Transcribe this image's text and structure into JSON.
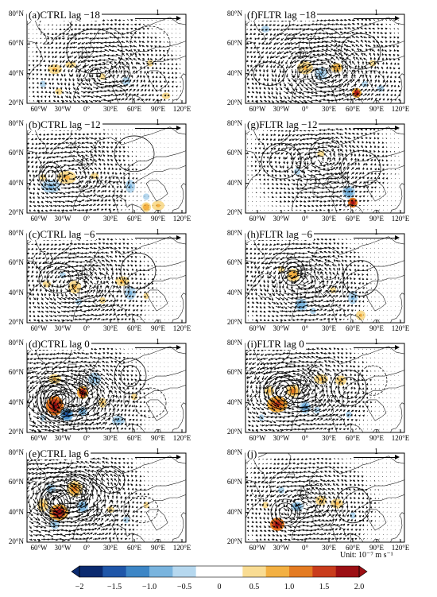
{
  "panels": [
    {
      "id": "a",
      "title": "(a)CTRL lag −18"
    },
    {
      "id": "b",
      "title": "(b)CTRL lag −12"
    },
    {
      "id": "c",
      "title": "(c)CTRL lag −6"
    },
    {
      "id": "d",
      "title": "(d)CTRL lag 0"
    },
    {
      "id": "e",
      "title": "(e)CTRL lag 6"
    },
    {
      "id": "f",
      "title": "(f)FLTR lag −18"
    },
    {
      "id": "g",
      "title": "(g)FLTR lag −12"
    },
    {
      "id": "h",
      "title": "(h)FLTR lag −6"
    },
    {
      "id": "i",
      "title": "(i)FLTR lag 0"
    },
    {
      "id": "j",
      "title": "(j)"
    }
  ],
  "reference_vector_label": "1",
  "unit_label": "Unit: 10⁻⁷ m s⁻¹",
  "chart_data": {
    "type": "heatmap",
    "description_of_panels": "10 map panels with shaded field, contours and vectors over North Atlantic/Eurasia",
    "lat_ticks": [
      "20°N",
      "40°N",
      "60°N",
      "80°N"
    ],
    "lon_ticks": [
      "60°W",
      "30°W",
      "0°",
      "30°E",
      "60°E",
      "90°E",
      "120°E"
    ],
    "lat_range": [
      20,
      80
    ],
    "lon_range": [
      -75,
      125
    ],
    "colorbar": {
      "ticks": [
        -2,
        -1.5,
        -1.0,
        -0.5,
        0,
        0.5,
        1.0,
        1.5,
        2.0
      ],
      "tick_labels": [
        "−2",
        "−1.5",
        "−1.0",
        "−0.5",
        "0",
        "0.5",
        "1.0",
        "1.5",
        "2.0"
      ],
      "colors": [
        "#0b2a6f",
        "#1f56a8",
        "#3d86c6",
        "#79b4de",
        "#b6d8ef",
        "#ffffff",
        "#ffffff",
        "#f9dc93",
        "#f3b042",
        "#e47b22",
        "#c93c1c",
        "#9c0f14"
      ]
    }
  }
}
